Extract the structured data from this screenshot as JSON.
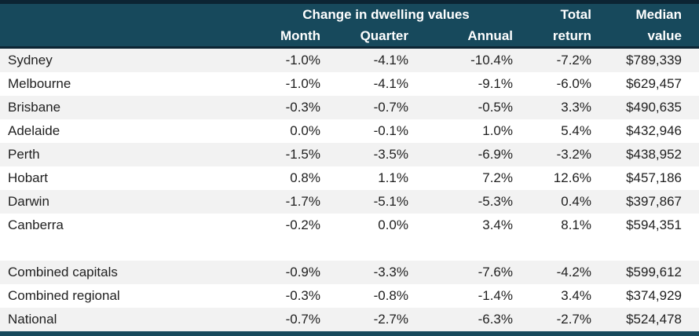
{
  "chart_data": {
    "type": "table",
    "header": {
      "group_title": "Change in dwelling values",
      "columns_line1": {
        "total": "Total",
        "median": "Median"
      },
      "columns_line2": {
        "month": "Month",
        "quarter": "Quarter",
        "annual": "Annual",
        "total": "return",
        "median": "value"
      }
    },
    "rows": [
      {
        "region": "Sydney",
        "month": "-1.0%",
        "quarter": "-4.1%",
        "annual": "-10.4%",
        "total_return": "-7.2%",
        "median_value": "$789,339"
      },
      {
        "region": "Melbourne",
        "month": "-1.0%",
        "quarter": "-4.1%",
        "annual": "-9.1%",
        "total_return": "-6.0%",
        "median_value": "$629,457"
      },
      {
        "region": "Brisbane",
        "month": "-0.3%",
        "quarter": "-0.7%",
        "annual": "-0.5%",
        "total_return": "3.3%",
        "median_value": "$490,635"
      },
      {
        "region": "Adelaide",
        "month": "0.0%",
        "quarter": "-0.1%",
        "annual": "1.0%",
        "total_return": "5.4%",
        "median_value": "$432,946"
      },
      {
        "region": "Perth",
        "month": "-1.5%",
        "quarter": "-3.5%",
        "annual": "-6.9%",
        "total_return": "-3.2%",
        "median_value": "$438,952"
      },
      {
        "region": "Hobart",
        "month": "0.8%",
        "quarter": "1.1%",
        "annual": "7.2%",
        "total_return": "12.6%",
        "median_value": "$457,186"
      },
      {
        "region": "Darwin",
        "month": "-1.7%",
        "quarter": "-5.1%",
        "annual": "-5.3%",
        "total_return": "0.4%",
        "median_value": "$397,867"
      },
      {
        "region": "Canberra",
        "month": "-0.2%",
        "quarter": "0.0%",
        "annual": "3.4%",
        "total_return": "8.1%",
        "median_value": "$594,351"
      },
      {
        "blank": true
      },
      {
        "region": "Combined capitals",
        "month": "-0.9%",
        "quarter": "-3.3%",
        "annual": "-7.6%",
        "total_return": "-4.2%",
        "median_value": "$599,612"
      },
      {
        "region": "Combined regional",
        "month": "-0.3%",
        "quarter": "-0.8%",
        "annual": "-1.4%",
        "total_return": "3.4%",
        "median_value": "$374,929"
      },
      {
        "region": "National",
        "month": "-0.7%",
        "quarter": "-2.7%",
        "annual": "-6.3%",
        "total_return": "-2.7%",
        "median_value": "$524,478"
      }
    ]
  },
  "colors": {
    "header_bg": "#17495c",
    "top_bar": "#0c2433",
    "header_text": "#ffffff",
    "row_shaded": "#f2f2f2",
    "row_plain": "#ffffff",
    "body_text": "#1f1f1f",
    "bottom_bar": "#17495c"
  }
}
